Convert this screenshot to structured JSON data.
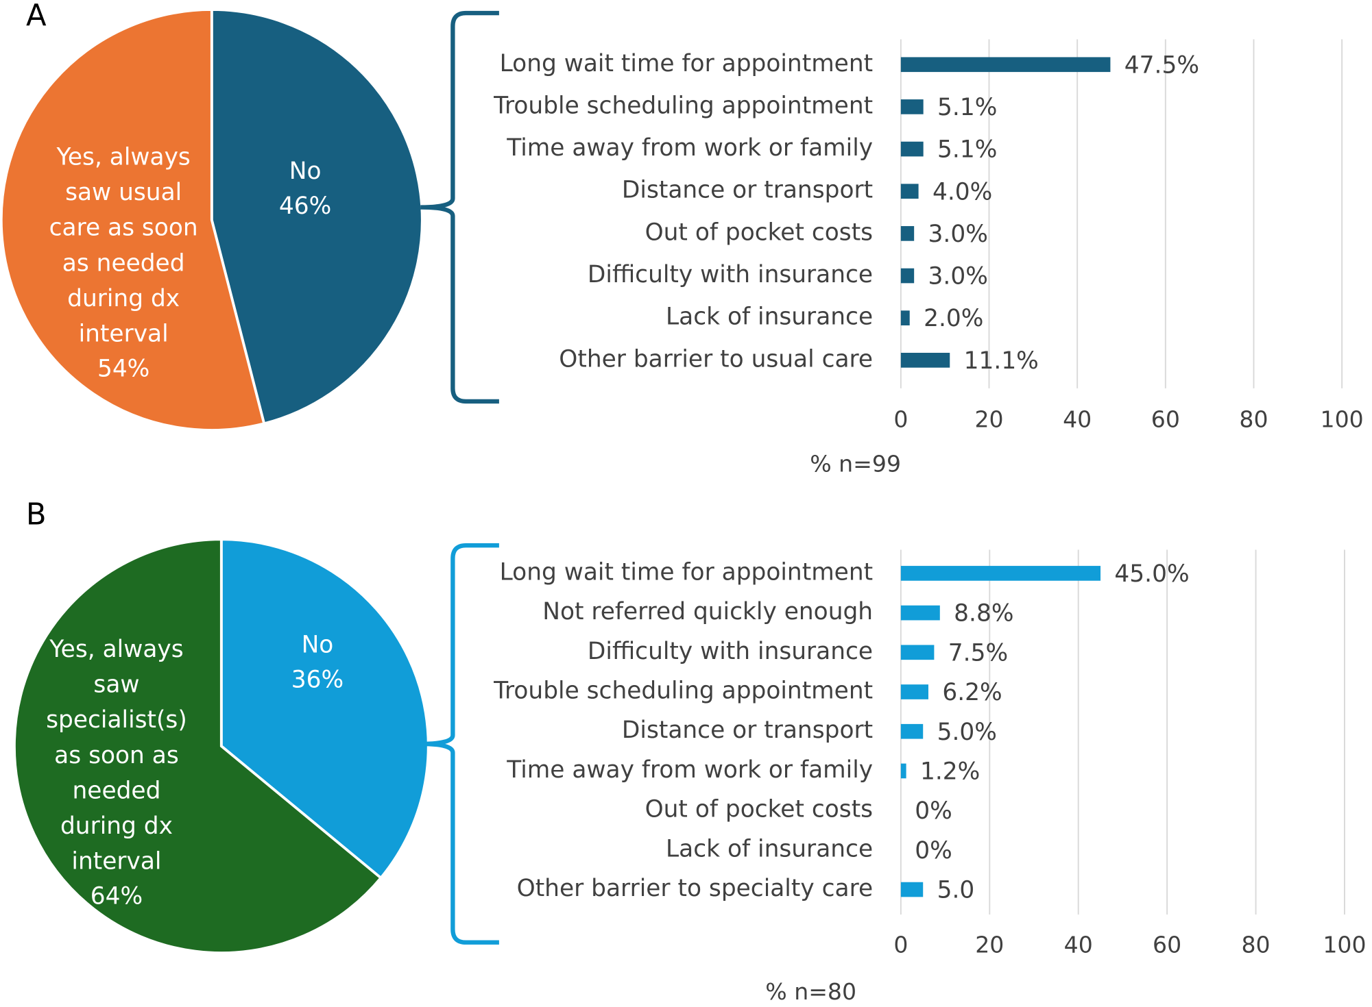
{
  "chart_data": [
    {
      "type": "pie",
      "label": "A",
      "categories": [
        "No",
        "Yes, always saw usual care as soon as needed during dx interval"
      ],
      "values": [
        46,
        54
      ],
      "value_labels": [
        "46%",
        "54%"
      ],
      "colors": [
        "#175f80",
        "#ec7532"
      ]
    },
    {
      "type": "hbar",
      "color": "#175f80",
      "categories": [
        "Long wait time for appointment",
        "Trouble scheduling appointment",
        "Time away from work or family",
        "Distance or transport",
        "Out of pocket costs",
        "Difficulty with insurance",
        "Lack of insurance",
        "Other barrier to usual care"
      ],
      "values": [
        47.5,
        5.1,
        5.1,
        4.0,
        3.0,
        3.0,
        2.0,
        11.1
      ],
      "value_labels": [
        "47.5%",
        "5.1%",
        "5.1%",
        "4.0%",
        "3.0%",
        "3.0%",
        "2.0%",
        "11.1%"
      ],
      "xlim": [
        0,
        100
      ],
      "xticks": [
        0,
        20,
        40,
        60,
        80,
        100
      ],
      "xlabel": "% n=99",
      "grid": true
    },
    {
      "type": "pie",
      "label": "B",
      "categories": [
        "No",
        "Yes, always saw specialist(s) as soon as needed during dx interval"
      ],
      "values": [
        36,
        64
      ],
      "value_labels": [
        "36%",
        "64%"
      ],
      "colors": [
        "#119dd8",
        "#1e6b22"
      ]
    },
    {
      "type": "hbar",
      "color": "#119dd8",
      "categories": [
        "Long wait time for appointment",
        "Not referred quickly enough",
        "Difficulty with insurance",
        "Trouble scheduling appointment",
        "Distance or transport",
        "Time away from work or family",
        "Out of pocket costs",
        "Lack of insurance",
        "Other barrier to specialty care"
      ],
      "values": [
        45.0,
        8.8,
        7.5,
        6.2,
        5.0,
        1.2,
        0,
        0,
        5.0
      ],
      "value_labels": [
        "45.0%",
        "8.8%",
        "7.5%",
        "6.2%",
        "5.0%",
        "1.2%",
        "0%",
        "0%",
        "5.0"
      ],
      "xlim": [
        0,
        100
      ],
      "xticks": [
        0,
        20,
        40,
        60,
        80,
        100
      ],
      "xlabel": "% n=80",
      "grid": true
    }
  ]
}
